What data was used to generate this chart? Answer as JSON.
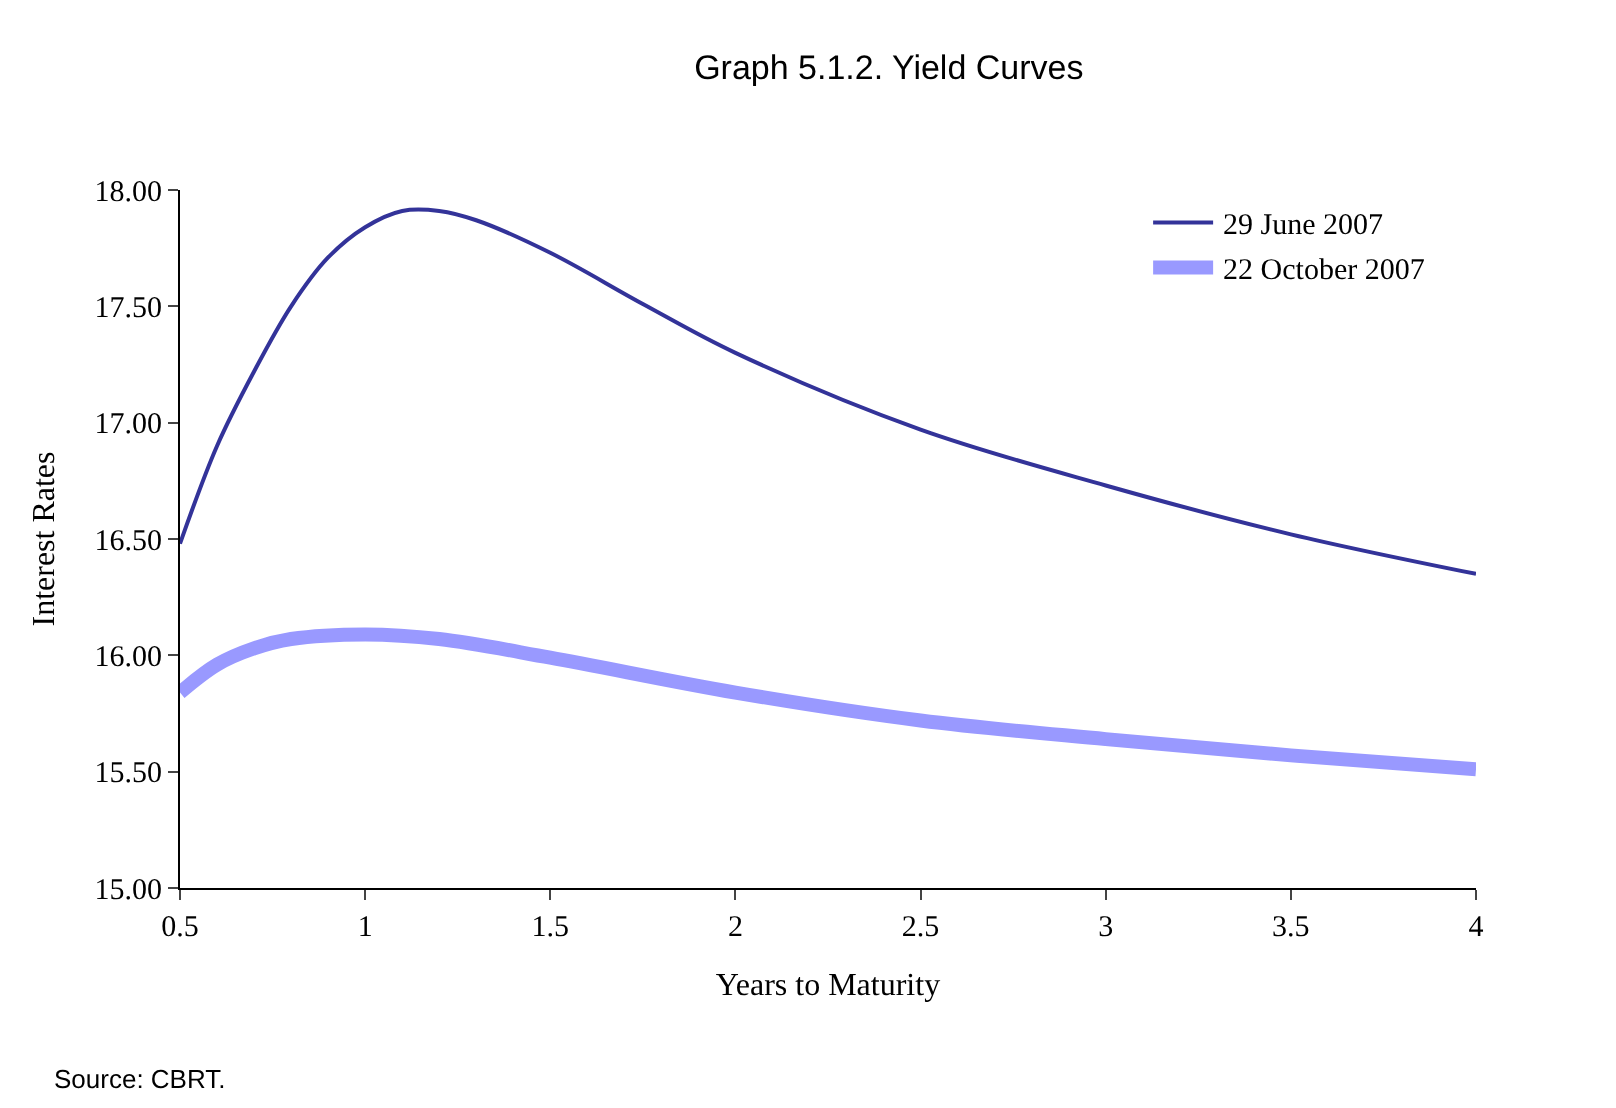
{
  "chart_data": {
    "type": "line",
    "title": "Graph 5.1.2. Yield Curves",
    "xlabel": "Years to Maturity",
    "ylabel": "Interest Rates",
    "x": [
      0.5,
      0.6,
      0.7,
      0.8,
      0.9,
      1.0,
      1.1,
      1.2,
      1.3,
      1.5,
      1.75,
      2.0,
      2.5,
      3.0,
      3.5,
      4.0
    ],
    "series": [
      {
        "name": "29 June 2007",
        "color": "#333399",
        "values": [
          16.48,
          16.9,
          17.22,
          17.5,
          17.71,
          17.84,
          17.91,
          17.91,
          17.87,
          17.73,
          17.51,
          17.3,
          16.97,
          16.73,
          16.52,
          16.35
        ]
      },
      {
        "name": "22 October 2007",
        "color": "#9999ff",
        "x": [
          0.5,
          0.6,
          0.7,
          0.8,
          1.0,
          1.2,
          1.5,
          2.0,
          2.5,
          3.0,
          3.5,
          4.0
        ],
        "values": [
          15.84,
          15.96,
          16.03,
          16.07,
          16.09,
          16.07,
          15.99,
          15.84,
          15.72,
          15.64,
          15.57,
          15.51
        ]
      }
    ],
    "xlim": [
      0.5,
      4
    ],
    "xticks": [
      0.5,
      1,
      1.5,
      2,
      2.5,
      3,
      3.5,
      4
    ],
    "ylim": [
      15,
      18
    ],
    "yticks": [
      {
        "value": 15,
        "label": "15.00"
      },
      {
        "value": 15.5,
        "label": "15.50"
      },
      {
        "value": 16,
        "label": "16.00"
      },
      {
        "value": 16.5,
        "label": "16.50"
      },
      {
        "value": 17,
        "label": "17.00"
      },
      {
        "value": 17.5,
        "label": "17.50"
      },
      {
        "value": 18,
        "label": "18.00"
      }
    ],
    "legend": "top right",
    "marker": "none",
    "line_style": "solid",
    "annotations": [
      "Source: CBRT."
    ]
  }
}
